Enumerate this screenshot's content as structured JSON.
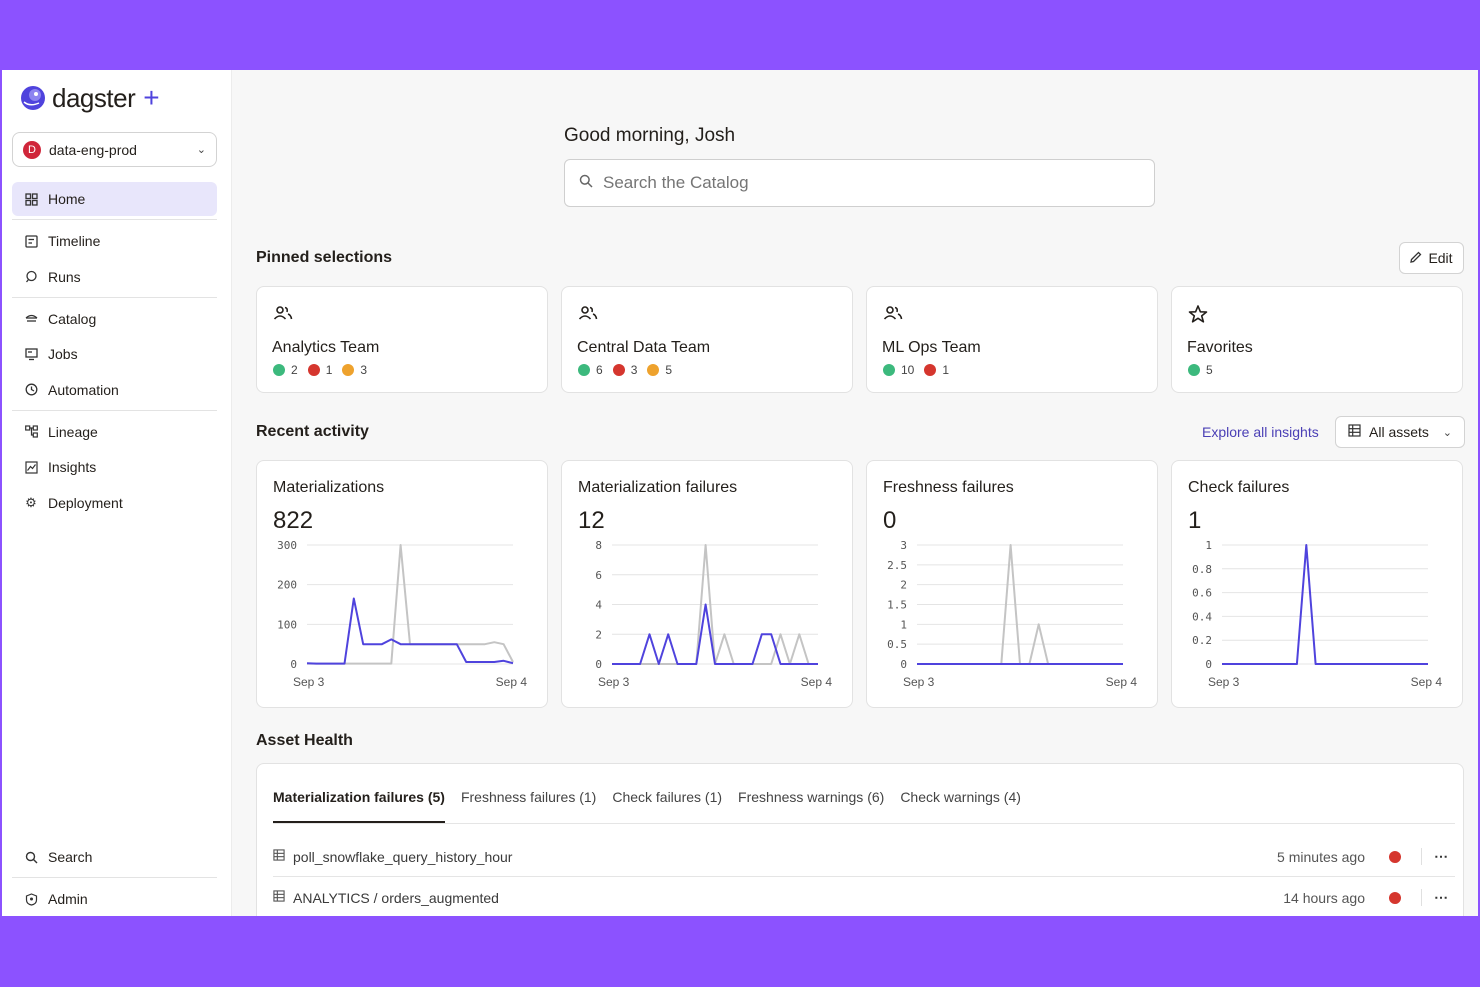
{
  "app": {
    "logo_text": "dagster",
    "logo_plus": "+"
  },
  "org": {
    "badge": "D",
    "name": "data-eng-prod"
  },
  "sidebar": {
    "items": [
      {
        "label": "Home",
        "icon": "grid-icon"
      },
      {
        "label": "Timeline",
        "icon": "timeline-icon"
      },
      {
        "label": "Runs",
        "icon": "runs-icon"
      },
      {
        "label": "Catalog",
        "icon": "catalog-icon"
      },
      {
        "label": "Jobs",
        "icon": "jobs-icon"
      },
      {
        "label": "Automation",
        "icon": "clock-icon"
      },
      {
        "label": "Lineage",
        "icon": "lineage-icon"
      },
      {
        "label": "Insights",
        "icon": "insights-icon"
      },
      {
        "label": "Deployment",
        "icon": "gear-icon"
      }
    ],
    "bottom": [
      {
        "label": "Search",
        "icon": "search-icon"
      },
      {
        "label": "Admin",
        "icon": "admin-icon"
      }
    ]
  },
  "greeting": "Good morning, Josh",
  "search": {
    "placeholder": "Search the Catalog"
  },
  "pinned": {
    "title": "Pinned selections",
    "edit_label": "Edit",
    "cards": [
      {
        "title": "Analytics Team",
        "icon": "team-icon",
        "green": "2",
        "red": "1",
        "orange": "3"
      },
      {
        "title": "Central Data Team",
        "icon": "team-icon",
        "green": "6",
        "red": "3",
        "orange": "5"
      },
      {
        "title": "ML Ops Team",
        "icon": "team-icon",
        "green": "10",
        "red": "1"
      },
      {
        "title": "Favorites",
        "icon": "star-icon",
        "green": "5"
      }
    ]
  },
  "activity": {
    "title": "Recent activity",
    "explore_label": "Explore all insights",
    "filter_label": "All assets",
    "cards": [
      {
        "title": "Materializations",
        "value": "822"
      },
      {
        "title": "Materialization failures",
        "value": "12"
      },
      {
        "title": "Freshness failures",
        "value": "0"
      },
      {
        "title": "Check failures",
        "value": "1"
      }
    ]
  },
  "chart_data": [
    {
      "type": "line",
      "title": "Materializations",
      "x_ticks": [
        "Sep 3",
        "Sep 4"
      ],
      "y_ticks": [
        "0",
        "100",
        "200",
        "300"
      ],
      "ylim": [
        0,
        300
      ],
      "series": [
        {
          "color": "#4f43dd",
          "values": [
            2,
            1,
            1,
            1,
            1,
            165,
            50,
            50,
            50,
            62,
            50,
            50,
            50,
            50,
            50,
            50,
            50,
            5,
            5,
            5,
            5,
            8,
            2
          ]
        },
        {
          "color": "#c4c4c4",
          "values": [
            1,
            1,
            1,
            1,
            1,
            1,
            1,
            1,
            1,
            1,
            300,
            50,
            50,
            50,
            50,
            50,
            50,
            50,
            50,
            50,
            55,
            50,
            5
          ]
        }
      ]
    },
    {
      "type": "line",
      "title": "Materialization failures",
      "x_ticks": [
        "Sep 3",
        "Sep 4"
      ],
      "y_ticks": [
        "0",
        "2",
        "4",
        "6",
        "8"
      ],
      "ylim": [
        0,
        8
      ],
      "series": [
        {
          "color": "#4f43dd",
          "values": [
            0,
            0,
            0,
            0,
            2,
            0,
            2,
            0,
            0,
            0,
            4,
            0,
            0,
            0,
            0,
            0,
            2,
            2,
            0,
            0,
            0,
            0,
            0
          ]
        },
        {
          "color": "#c4c4c4",
          "values": [
            0,
            0,
            0,
            0,
            0,
            0,
            0,
            0,
            0,
            0,
            8,
            0,
            2,
            0,
            0,
            0,
            0,
            0,
            2,
            0,
            2,
            0,
            0
          ]
        }
      ]
    },
    {
      "type": "line",
      "title": "Freshness failures",
      "x_ticks": [
        "Sep 3",
        "Sep 4"
      ],
      "y_ticks": [
        "0",
        "0.5",
        "1",
        "1.5",
        "2",
        "2.5",
        "3"
      ],
      "ylim": [
        0,
        3
      ],
      "series": [
        {
          "color": "#4f43dd",
          "values": [
            0,
            0,
            0,
            0,
            0,
            0,
            0,
            0,
            0,
            0,
            0,
            0,
            0,
            0,
            0,
            0,
            0,
            0,
            0,
            0,
            0,
            0,
            0
          ]
        },
        {
          "color": "#c4c4c4",
          "values": [
            0,
            0,
            0,
            0,
            0,
            0,
            0,
            0,
            0,
            0,
            3,
            0,
            0,
            1,
            0,
            0,
            0,
            0,
            0,
            0,
            0,
            0,
            0
          ]
        }
      ]
    },
    {
      "type": "line",
      "title": "Check failures",
      "x_ticks": [
        "Sep 3",
        "Sep 4"
      ],
      "y_ticks": [
        "0",
        "0.2",
        "0.4",
        "0.6",
        "0.8",
        "1"
      ],
      "ylim": [
        0,
        1
      ],
      "series": [
        {
          "color": "#4f43dd",
          "values": [
            0,
            0,
            0,
            0,
            0,
            0,
            0,
            0,
            0,
            1,
            0,
            0,
            0,
            0,
            0,
            0,
            0,
            0,
            0,
            0,
            0,
            0,
            0
          ]
        }
      ]
    }
  ],
  "health": {
    "title": "Asset Health",
    "tabs": [
      "Materialization failures (5)",
      "Freshness failures (1)",
      "Check failures (1)",
      "Freshness warnings (6)",
      "Check warnings (4)"
    ],
    "rows": [
      {
        "name": "poll_snowflake_query_history_hour",
        "time": "5 minutes ago"
      },
      {
        "name": "ANALYTICS / orders_augmented",
        "time": "14 hours ago"
      }
    ]
  }
}
